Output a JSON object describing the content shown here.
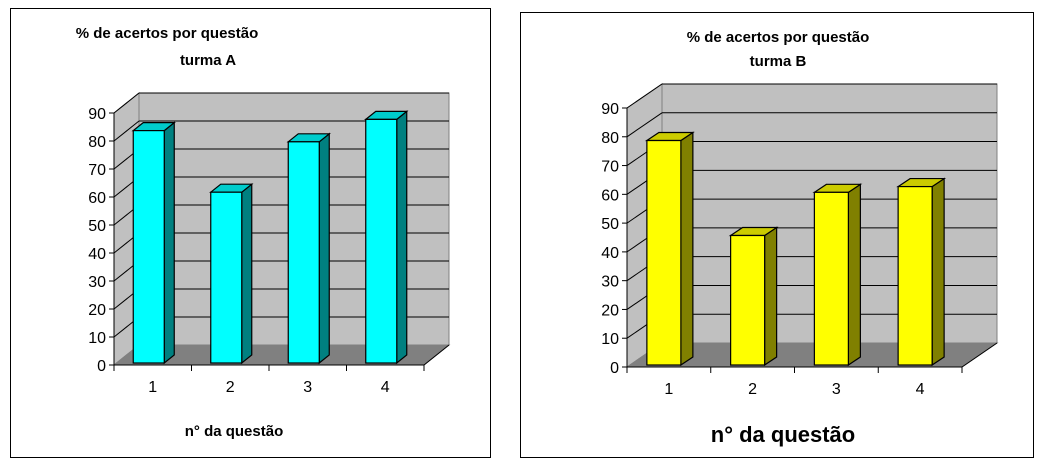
{
  "charts": [
    {
      "title_line1": "% de acertos por questão",
      "title_line2": "turma A",
      "xlabel": "n° da questão",
      "yticks": [
        "0",
        "10",
        "20",
        "30",
        "40",
        "50",
        "60",
        "70",
        "80",
        "90"
      ],
      "categories": [
        "1",
        "2",
        "3",
        "4"
      ],
      "colors": {
        "front": "#00ffff",
        "side": "#008080",
        "top": "#00cccc"
      }
    },
    {
      "title_line1": "% de acertos por questão",
      "title_line2": "turma B",
      "xlabel": "n° da questão",
      "yticks": [
        "0",
        "10",
        "20",
        "30",
        "40",
        "50",
        "60",
        "70",
        "80",
        "90"
      ],
      "categories": [
        "1",
        "2",
        "3",
        "4"
      ],
      "colors": {
        "front": "#ffff00",
        "side": "#808000",
        "top": "#cccc00"
      }
    }
  ],
  "chart_data": [
    {
      "type": "bar",
      "title": "% de acertos por questão turma A",
      "xlabel": "n° da questão",
      "ylabel": "",
      "categories": [
        "1",
        "2",
        "3",
        "4"
      ],
      "values": [
        83,
        61,
        79,
        87
      ],
      "ylim": [
        0,
        90
      ],
      "grid": true,
      "style": "3d-column"
    },
    {
      "type": "bar",
      "title": "% de acertos por questão turma B",
      "xlabel": "n° da questão",
      "ylabel": "",
      "categories": [
        "1",
        "2",
        "3",
        "4"
      ],
      "values": [
        78,
        45,
        60,
        62
      ],
      "ylim": [
        0,
        90
      ],
      "grid": true,
      "style": "3d-column"
    }
  ]
}
